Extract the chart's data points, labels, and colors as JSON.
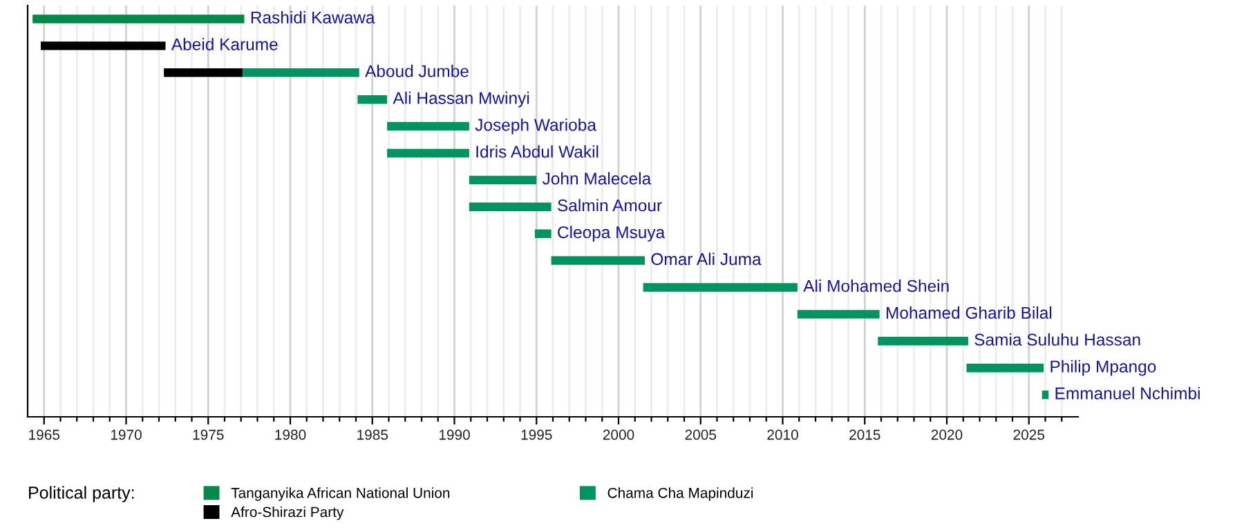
{
  "chart_data": {
    "type": "bar",
    "orientation": "horizontal",
    "legend_title": "Political party:",
    "categories": [
      "Rashidi Kawawa",
      "Abeid Karume",
      "Aboud Jumbe",
      "Ali Hassan Mwinyi",
      "Joseph Warioba",
      "Idris Abdul Wakil",
      "John Malecela",
      "Salmin Amour",
      "Cleopa Msuya",
      "Omar Ali Juma",
      "Ali Mohamed Shein",
      "Mohamed Gharib Bilal",
      "Samia Suluhu Hassan",
      "Philip Mpango",
      "Emmanuel Nchimbi"
    ],
    "series": [
      {
        "name": "Tanganyika African National Union",
        "color": "#008c48",
        "base": [
          1964.3,
          null,
          null,
          null,
          null,
          null,
          null,
          null,
          null,
          null,
          null,
          null,
          null,
          null,
          null
        ],
        "values": [
          12.9,
          null,
          null,
          null,
          null,
          null,
          null,
          null,
          null,
          null,
          null,
          null,
          null,
          null,
          null
        ]
      },
      {
        "name": "Afro-Shirazi Party",
        "color": "#000000",
        "base": [
          null,
          1964.8,
          1972.3,
          null,
          null,
          null,
          null,
          null,
          null,
          null,
          null,
          null,
          null,
          null,
          null
        ],
        "values": [
          null,
          7.6,
          4.8,
          null,
          null,
          null,
          null,
          null,
          null,
          null,
          null,
          null,
          null,
          null,
          null
        ]
      },
      {
        "name": "Chama Cha Mapinduzi",
        "color": "#00955f",
        "base": [
          null,
          null,
          1977.1,
          1984.1,
          1985.9,
          1985.9,
          1990.9,
          1990.9,
          1994.9,
          1995.9,
          2001.5,
          2010.9,
          2015.8,
          2021.2,
          2025.8
        ],
        "values": [
          null,
          null,
          7.1,
          1.8,
          5.0,
          5.0,
          4.1,
          5.0,
          1.0,
          5.7,
          9.4,
          5.0,
          5.5,
          4.7,
          0.4
        ]
      }
    ],
    "xlim": [
      1964,
      2028
    ],
    "xticks": [
      1965,
      {
        "value": 1966,
        "label": null
      },
      {
        "value": 1967,
        "label": null
      },
      {
        "value": 1968,
        "label": null
      },
      {
        "value": 1969,
        "label": null
      },
      1970,
      {
        "value": 1971,
        "label": null
      },
      {
        "value": 1972,
        "label": null
      },
      {
        "value": 1973,
        "label": null
      },
      {
        "value": 1974,
        "label": null
      },
      1975,
      {
        "value": 1976,
        "label": null
      },
      {
        "value": 1977,
        "label": null
      },
      {
        "value": 1978,
        "label": null
      },
      {
        "value": 1979,
        "label": null
      },
      1980,
      {
        "value": 1981,
        "label": null
      },
      {
        "value": 1982,
        "label": null
      },
      {
        "value": 1983,
        "label": null
      },
      {
        "value": 1984,
        "label": null
      },
      1985,
      {
        "value": 1986,
        "label": null
      },
      {
        "value": 1987,
        "label": null
      },
      {
        "value": 1988,
        "label": null
      },
      {
        "value": 1989,
        "label": null
      },
      1990,
      {
        "value": 1991,
        "label": null
      },
      {
        "value": 1992,
        "label": null
      },
      {
        "value": 1993,
        "label": null
      },
      {
        "value": 1994,
        "label": null
      },
      1995,
      {
        "value": 1996,
        "label": null
      },
      {
        "value": 1997,
        "label": null
      },
      {
        "value": 1998,
        "label": null
      },
      {
        "value": 1999,
        "label": null
      },
      2000,
      {
        "value": 2001,
        "label": null
      },
      {
        "value": 2002,
        "label": null
      },
      {
        "value": 2003,
        "label": null
      },
      {
        "value": 2004,
        "label": null
      },
      2005,
      {
        "value": 2006,
        "label": null
      },
      {
        "value": 2007,
        "label": null
      },
      {
        "value": 2008,
        "label": null
      },
      {
        "value": 2009,
        "label": null
      },
      2010,
      {
        "value": 2011,
        "label": null
      },
      {
        "value": 2012,
        "label": null
      },
      {
        "value": 2013,
        "label": null
      },
      {
        "value": 2014,
        "label": null
      },
      2015,
      {
        "value": 2016,
        "label": null
      },
      {
        "value": 2017,
        "label": null
      },
      {
        "value": 2018,
        "label": null
      },
      {
        "value": 2019,
        "label": null
      },
      2020,
      {
        "value": 2021,
        "label": null
      },
      {
        "value": 2022,
        "label": null
      },
      {
        "value": 2023,
        "label": null
      },
      {
        "value": 2024,
        "label": null
      },
      2025,
      {
        "value": 2026,
        "label": null
      },
      {
        "value": 2027,
        "label": null
      }
    ],
    "grid": "x",
    "tick_labels": "x",
    "legend": "bottom"
  }
}
